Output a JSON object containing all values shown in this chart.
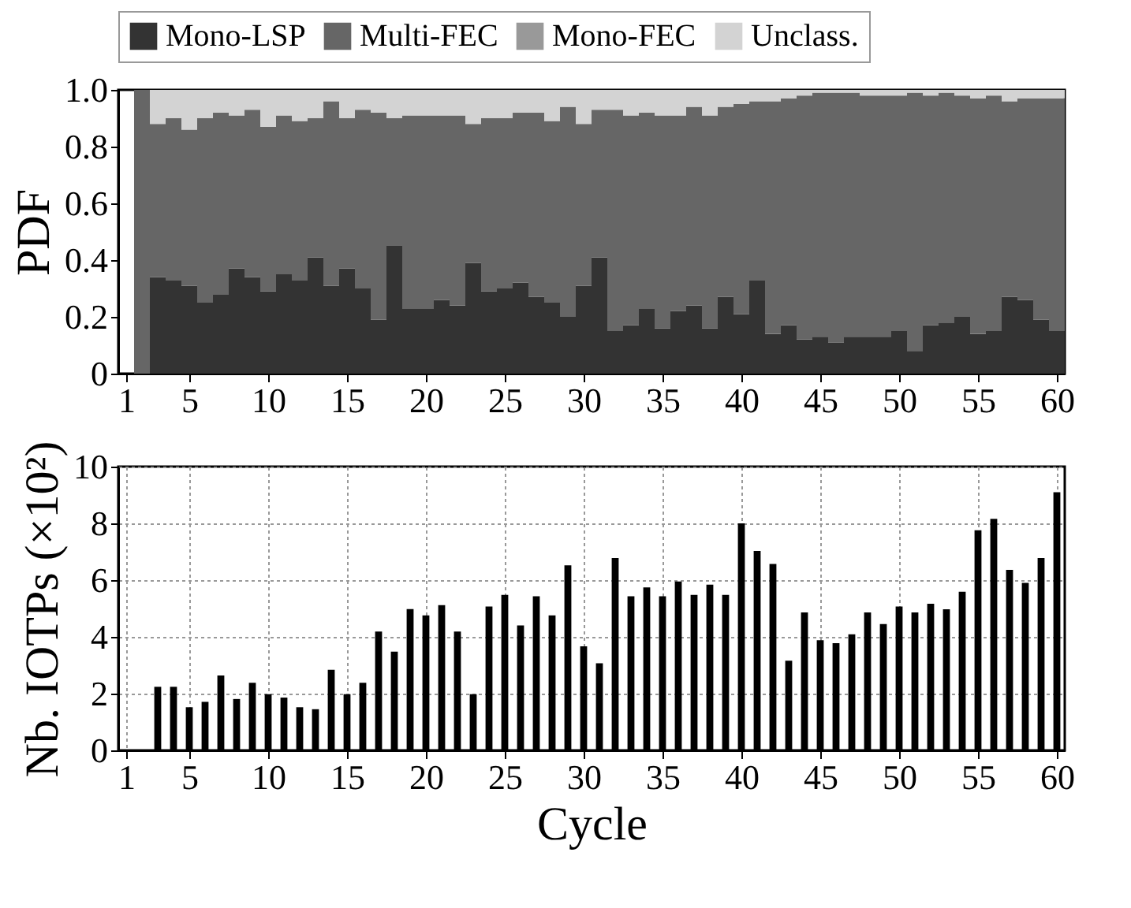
{
  "chart_data": [
    {
      "type": "bar",
      "stacked": true,
      "ylabel": "PDF",
      "legend": "top",
      "x": [
        2,
        3,
        4,
        5,
        6,
        7,
        8,
        9,
        10,
        11,
        12,
        13,
        14,
        15,
        16,
        17,
        18,
        19,
        20,
        21,
        22,
        23,
        24,
        25,
        26,
        27,
        28,
        29,
        30,
        31,
        32,
        33,
        34,
        35,
        36,
        37,
        38,
        39,
        40,
        41,
        42,
        43,
        44,
        45,
        46,
        47,
        48,
        49,
        50,
        51,
        52,
        53,
        54,
        55,
        56,
        57,
        58,
        59,
        60
      ],
      "xlim": [
        0.5,
        60.5
      ],
      "xticks": [
        1,
        5,
        10,
        15,
        20,
        25,
        30,
        35,
        40,
        45,
        50,
        55,
        60
      ],
      "ylim": [
        0,
        1
      ],
      "yticks": [
        0,
        0.2,
        0.4,
        0.6,
        0.8,
        {
          "value": 1,
          "label": "1.0"
        }
      ],
      "series": [
        {
          "name": "Mono-LSP",
          "color": "#333333",
          "values": [
            0,
            0.34,
            0.33,
            0.31,
            0.25,
            0.28,
            0.37,
            0.34,
            0.29,
            0.35,
            0.33,
            0.41,
            0.31,
            0.37,
            0.3,
            0.19,
            0.45,
            0.23,
            0.23,
            0.26,
            0.24,
            0.39,
            0.29,
            0.3,
            0.32,
            0.27,
            0.25,
            0.2,
            0.31,
            0.41,
            0.15,
            0.17,
            0.23,
            0.16,
            0.22,
            0.24,
            0.16,
            0.27,
            0.21,
            0.33,
            0.14,
            0.17,
            0.12,
            0.13,
            0.11,
            0.13,
            0.13,
            0.13,
            0.15,
            0.08,
            0.17,
            0.18,
            0.2,
            0.14,
            0.15,
            0.27,
            0.26,
            0.19,
            0.15
          ]
        },
        {
          "name": "Multi-FEC",
          "color": "#666666",
          "values": [
            1,
            0.54,
            0.57,
            0.55,
            0.65,
            0.64,
            0.54,
            0.59,
            0.58,
            0.56,
            0.56,
            0.49,
            0.65,
            0.53,
            0.63,
            0.73,
            0.45,
            0.68,
            0.68,
            0.65,
            0.67,
            0.49,
            0.61,
            0.6,
            0.6,
            0.65,
            0.64,
            0.74,
            0.57,
            0.52,
            0.78,
            0.74,
            0.69,
            0.75,
            0.69,
            0.7,
            0.75,
            0.67,
            0.74,
            0.63,
            0.82,
            0.8,
            0.86,
            0.86,
            0.88,
            0.86,
            0.85,
            0.85,
            0.83,
            0.91,
            0.81,
            0.81,
            0.78,
            0.83,
            0.83,
            0.69,
            0.71,
            0.78,
            0.82
          ]
        },
        {
          "name": "Mono-FEC",
          "color": "#999999",
          "values": [
            0,
            0,
            0,
            0,
            0,
            0,
            0,
            0,
            0,
            0,
            0,
            0,
            0,
            0,
            0,
            0,
            0,
            0,
            0,
            0,
            0,
            0,
            0,
            0,
            0,
            0,
            0,
            0,
            0,
            0,
            0,
            0,
            0,
            0,
            0,
            0,
            0,
            0,
            0,
            0,
            0,
            0,
            0,
            0,
            0,
            0,
            0,
            0,
            0,
            0,
            0,
            0,
            0,
            0,
            0,
            0,
            0,
            0,
            0
          ]
        },
        {
          "name": "Unclass.",
          "color": "#d3d3d3",
          "values": [
            0,
            0.12,
            0.1,
            0.14,
            0.1,
            0.08,
            0.09,
            0.07,
            0.13,
            0.09,
            0.11,
            0.1,
            0.04,
            0.1,
            0.07,
            0.08,
            0.1,
            0.09,
            0.09,
            0.09,
            0.09,
            0.12,
            0.1,
            0.1,
            0.08,
            0.08,
            0.11,
            0.06,
            0.12,
            0.07,
            0.07,
            0.09,
            0.08,
            0.09,
            0.09,
            0.06,
            0.09,
            0.06,
            0.05,
            0.04,
            0.04,
            0.03,
            0.02,
            0.01,
            0.01,
            0.01,
            0.02,
            0.02,
            0.02,
            0.01,
            0.02,
            0.01,
            0.02,
            0.03,
            0.02,
            0.04,
            0.03,
            0.03,
            0.03
          ]
        }
      ]
    },
    {
      "type": "bar",
      "xlabel": "Cycle",
      "ylabel": "Nb. IOTPs (×10²)",
      "grid": true,
      "color": "#000000",
      "x": [
        3,
        4,
        5,
        6,
        7,
        8,
        9,
        10,
        11,
        12,
        13,
        14,
        15,
        16,
        17,
        18,
        19,
        20,
        21,
        22,
        23,
        24,
        25,
        26,
        27,
        28,
        29,
        30,
        31,
        32,
        33,
        34,
        35,
        36,
        37,
        38,
        39,
        40,
        41,
        42,
        43,
        44,
        45,
        46,
        47,
        48,
        49,
        50,
        51,
        52,
        53,
        54,
        55,
        56,
        57,
        58,
        59,
        60
      ],
      "values": [
        2.24,
        2.24,
        1.52,
        1.71,
        2.64,
        1.81,
        2.38,
        1.98,
        1.86,
        1.52,
        1.45,
        2.84,
        1.98,
        2.38,
        4.19,
        3.48,
        4.98,
        4.76,
        5.12,
        4.19,
        1.98,
        5.07,
        5.48,
        4.4,
        5.43,
        4.76,
        6.52,
        3.67,
        3.07,
        6.78,
        5.43,
        5.74,
        5.43,
        5.95,
        5.48,
        5.84,
        5.48,
        8.0,
        7.03,
        6.57,
        3.16,
        4.86,
        3.88,
        3.78,
        4.09,
        4.86,
        4.45,
        5.07,
        4.86,
        5.17,
        4.97,
        5.59,
        7.76,
        8.16,
        6.36,
        5.9,
        6.78,
        9.1
      ],
      "xlim": [
        0.5,
        60.5
      ],
      "xticks": [
        1,
        5,
        10,
        15,
        20,
        25,
        30,
        35,
        40,
        45,
        50,
        55,
        60
      ],
      "ylim": [
        0,
        10
      ],
      "yticks": [
        0,
        2,
        4,
        6,
        8,
        10
      ]
    }
  ]
}
